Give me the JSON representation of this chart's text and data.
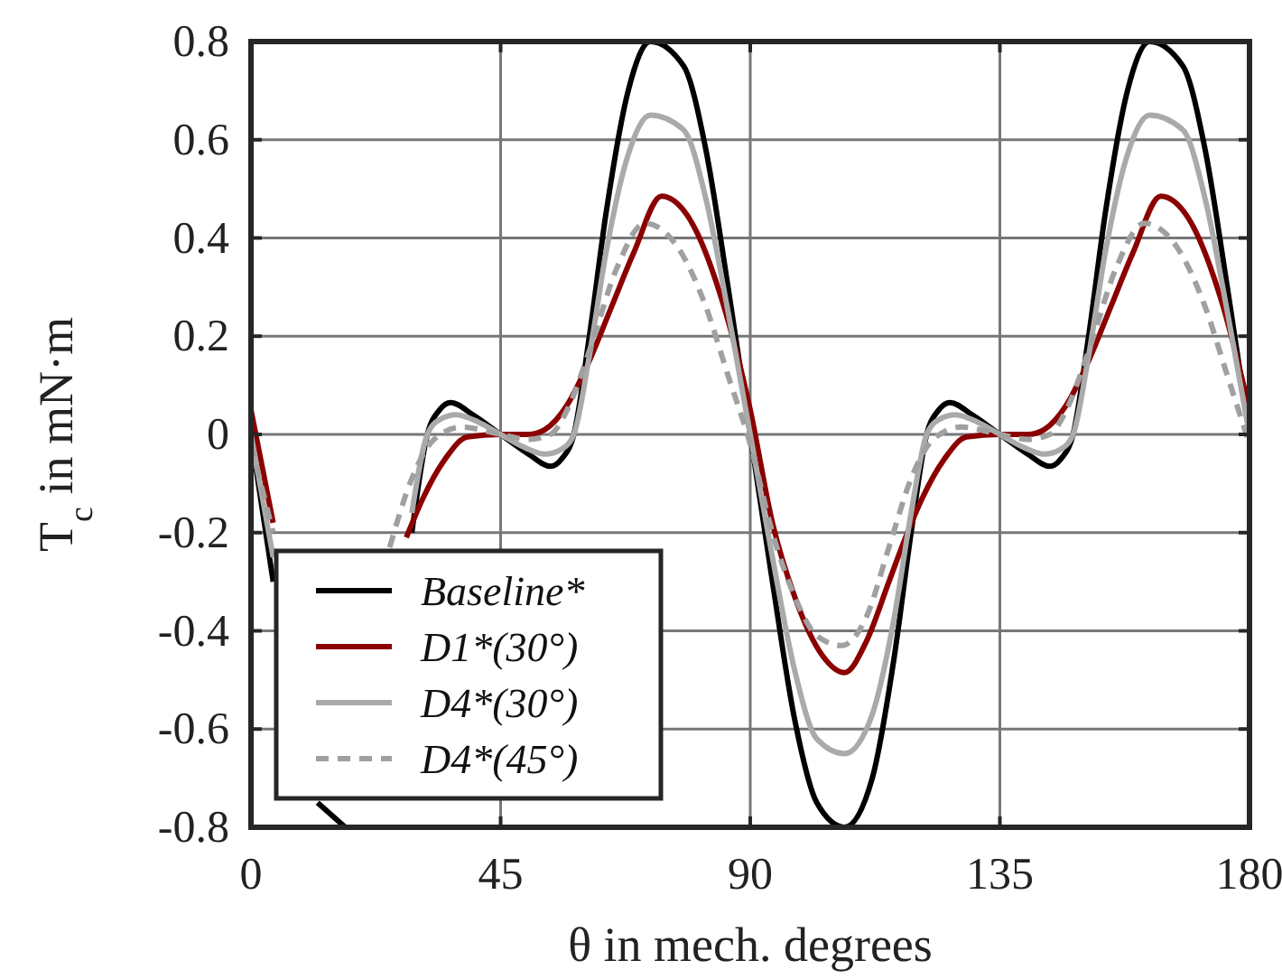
{
  "chart_data": {
    "type": "line",
    "xlabel": "θ in mech. degrees",
    "ylabel": "T$_{c}$ in mN·m",
    "xlim": [
      0,
      180
    ],
    "ylim": [
      -0.8,
      0.8
    ],
    "xticks": [
      0,
      45,
      90,
      135,
      180
    ],
    "yticks": [
      -0.8,
      -0.6,
      -0.4,
      -0.2,
      0,
      0.2,
      0.4,
      0.6,
      0.8
    ],
    "grid": true,
    "legend": "bottom left",
    "marker": "none",
    "series": [
      {
        "name": "Baseline*",
        "color": "#000000",
        "line_style": "solid",
        "x": [
          0,
          4,
          8,
          12,
          17,
          22,
          26,
          29,
          31.8,
          34,
          36,
          40,
          45,
          50,
          54,
          56,
          58.2,
          61,
          64,
          68,
          72,
          78,
          82,
          86,
          90,
          94,
          98,
          102,
          107,
          112,
          116,
          119,
          121.8,
          124,
          126,
          130,
          135,
          140,
          144,
          146,
          148.2,
          151,
          154,
          158,
          162,
          168,
          172,
          176,
          180
        ],
        "values": [
          0,
          -0.3,
          null,
          -0.75,
          -0.8,
          null,
          null,
          -0.2,
          0,
          0.05,
          0.065,
          0.04,
          0,
          -0.04,
          -0.065,
          -0.05,
          0,
          0.2,
          0.45,
          0.7,
          0.8,
          0.75,
          0.58,
          0.3,
          0,
          -0.3,
          -0.58,
          -0.75,
          -0.8,
          -0.7,
          -0.45,
          -0.2,
          0,
          0.05,
          0.065,
          0.04,
          0,
          -0.04,
          -0.065,
          -0.05,
          0,
          0.2,
          0.45,
          0.7,
          0.8,
          0.75,
          0.58,
          0.3,
          0
        ]
      },
      {
        "name": "D1*(30°)",
        "color": "#8b0000",
        "line_style": "solid",
        "x": [
          0,
          4,
          8,
          13,
          17,
          21,
          25,
          28,
          31,
          35,
          39,
          45,
          50,
          53,
          57,
          61,
          65,
          69,
          74,
          79,
          85,
          90,
          94,
          98,
          103,
          107,
          111,
          115,
          118,
          121,
          125,
          129,
          135,
          140,
          143,
          147,
          151,
          155,
          159,
          164,
          169,
          175,
          180
        ],
        "values": [
          0.05,
          -0.18,
          null,
          null,
          null,
          null,
          null,
          -0.21,
          -0.13,
          -0.05,
          -0.005,
          0,
          0,
          0.01,
          0.06,
          0.15,
          0.26,
          0.37,
          0.485,
          0.44,
          0.27,
          0.05,
          -0.18,
          -0.33,
          -0.45,
          -0.485,
          -0.42,
          -0.3,
          -0.21,
          -0.13,
          -0.05,
          -0.005,
          0,
          0,
          0.01,
          0.06,
          0.15,
          0.26,
          0.37,
          0.485,
          0.44,
          0.27,
          0.05
        ]
      },
      {
        "name": "D4*(30°)",
        "color": "#aaaaaa",
        "line_style": "solid",
        "x": [
          0,
          4,
          8,
          12,
          17,
          22,
          26,
          29,
          31.8,
          34,
          37,
          41,
          45,
          49,
          53,
          56,
          58.2,
          61,
          64,
          68,
          72,
          78,
          82,
          86,
          90,
          94,
          98,
          102,
          107,
          112,
          116,
          119,
          121.8,
          124,
          127,
          131,
          135,
          139,
          143,
          146,
          148.2,
          151,
          154,
          158,
          162,
          168,
          172,
          176,
          180
        ],
        "values": [
          0,
          -0.25,
          null,
          null,
          null,
          null,
          null,
          -0.16,
          0,
          0.03,
          0.04,
          0.025,
          0,
          -0.025,
          -0.04,
          -0.03,
          0,
          0.16,
          0.37,
          0.57,
          0.65,
          0.62,
          0.48,
          0.25,
          0,
          -0.25,
          -0.48,
          -0.62,
          -0.65,
          -0.57,
          -0.37,
          -0.16,
          0,
          0.03,
          0.04,
          0.025,
          0,
          -0.025,
          -0.04,
          -0.03,
          0,
          0.16,
          0.37,
          0.57,
          0.65,
          0.62,
          0.48,
          0.25,
          0
        ]
      },
      {
        "name": "D4*(45°)",
        "color": "#a0a0a0",
        "line_style": "dashed",
        "x": [
          0,
          4,
          8,
          12,
          16.5,
          21,
          25,
          29,
          33,
          38,
          45,
          50,
          54,
          57,
          61,
          66,
          71,
          77,
          82,
          86,
          90,
          94,
          98,
          102,
          106.5,
          111,
          115,
          119,
          123,
          128,
          135,
          140,
          144,
          147,
          151,
          156,
          161,
          167,
          172,
          176,
          180
        ],
        "values": [
          -0.02,
          -0.2,
          null,
          null,
          null,
          null,
          -0.23,
          -0.09,
          -0.01,
          0.015,
          0,
          -0.01,
          0,
          0.05,
          0.17,
          0.34,
          0.43,
          0.38,
          0.26,
          0.12,
          -0.02,
          -0.2,
          -0.33,
          -0.41,
          -0.43,
          -0.37,
          -0.23,
          -0.09,
          -0.01,
          0.015,
          0,
          -0.01,
          0,
          0.05,
          0.17,
          0.34,
          0.43,
          0.38,
          0.26,
          0.12,
          -0.02
        ]
      }
    ]
  }
}
